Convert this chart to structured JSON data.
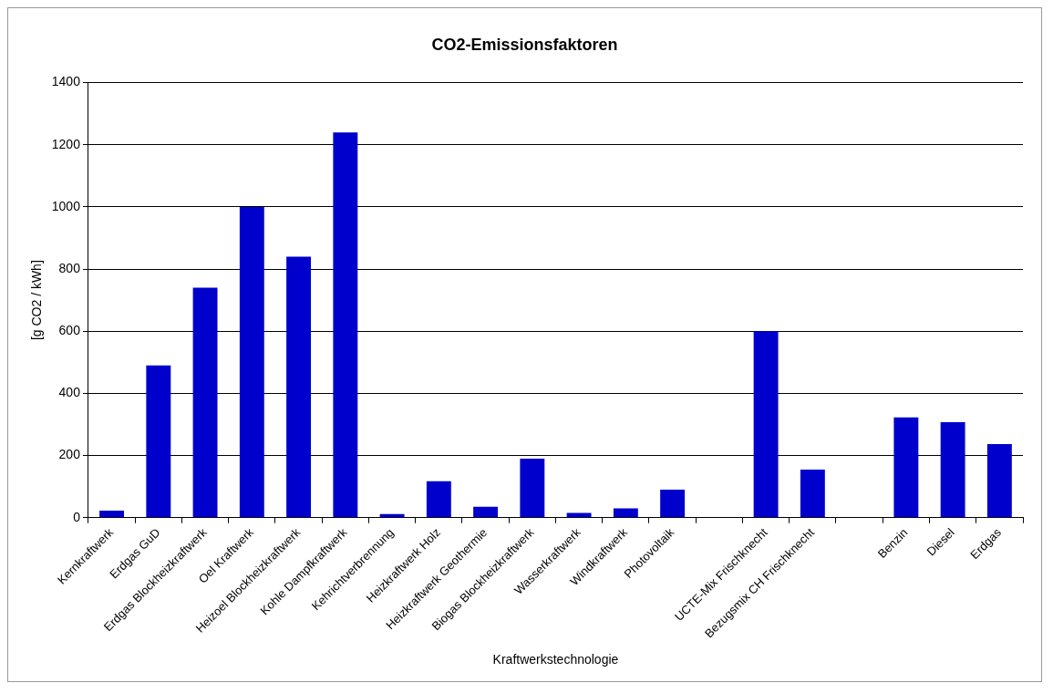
{
  "chart_data": {
    "type": "bar",
    "title": "CO2-Emissionsfaktoren",
    "xlabel": "Kraftwerkstechnologie",
    "ylabel": "[g CO2 / kWh]",
    "categories": [
      "Kernkraftwerk",
      "Erdgas GuD",
      "Erdgas Blockheizkraftwerk",
      "Oel Kraftwerk",
      "Heizoel Blockheizkraftwerk",
      "Kohle Dampfkraftwerk",
      "Kehrichtverbrennung",
      "Heizkraftwerk Holz",
      "Heizkraftwerk Geothermie",
      "Biogas Blockheizkraftwerk",
      "Wasserkraftwerk",
      "Windkraftwerk",
      "Photovoltaik",
      null,
      "UCTE-Mix Frischknecht",
      "Bezugsmix CH Frischknecht",
      null,
      "Benzin",
      "Diesel",
      "Erdgas"
    ],
    "values": [
      23,
      490,
      740,
      1000,
      840,
      1240,
      12,
      117,
      35,
      190,
      15,
      30,
      90,
      null,
      600,
      155,
      null,
      323,
      307,
      237
    ],
    "color": "#0000cc",
    "ylim": [
      0,
      1400
    ],
    "yticks": [
      0,
      200,
      400,
      600,
      800,
      1000,
      1200,
      1400
    ],
    "grid": "y"
  }
}
